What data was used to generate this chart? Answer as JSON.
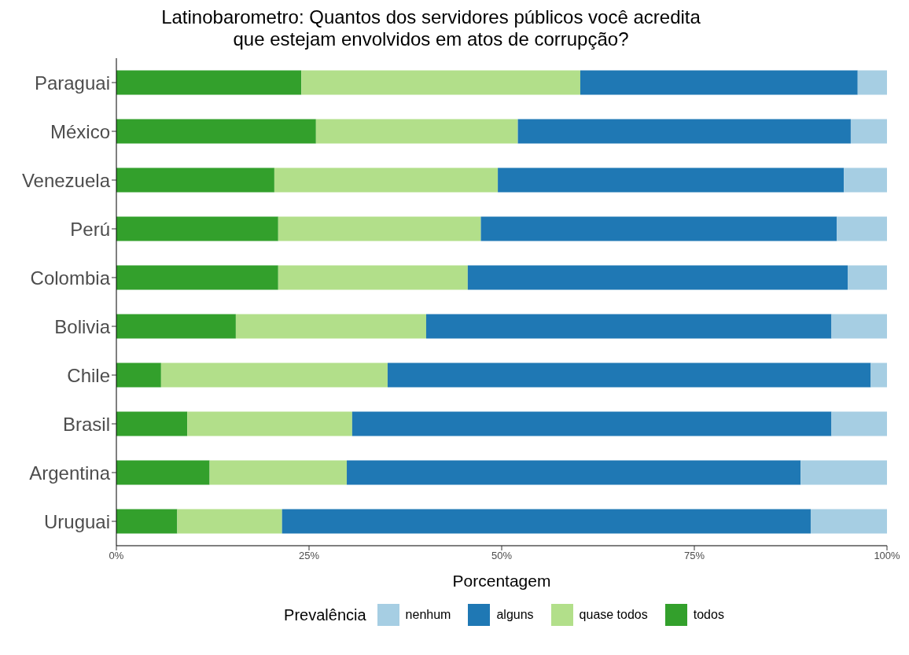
{
  "chart_data": {
    "type": "bar",
    "orientation": "horizontal",
    "stacked": true,
    "title": "Latinobarometro: Quantos dos servidores públicos você acredita\nque estejam envolvidos em atos de corrupção?",
    "xlabel": "Porcentagem",
    "legend_title": "Prevalência",
    "legend": "bottom",
    "grid": false,
    "categories": [
      "Paraguai",
      "México",
      "Venezuela",
      "Perú",
      "Colombia",
      "Bolivia",
      "Chile",
      "Brasil",
      "Argentina",
      "Uruguai"
    ],
    "series": [
      {
        "name": "todos",
        "color": "#33a02c",
        "values": [
          24.0,
          25.9,
          20.5,
          21.0,
          21.0,
          15.5,
          5.8,
          9.2,
          12.1,
          7.9
        ]
      },
      {
        "name": "quase todos",
        "color": "#b2df8a",
        "values": [
          36.2,
          26.2,
          29.0,
          26.3,
          24.6,
          24.7,
          29.4,
          21.4,
          17.8,
          13.6
        ]
      },
      {
        "name": "alguns",
        "color": "#1f78b4",
        "values": [
          36.0,
          43.2,
          44.9,
          46.2,
          49.3,
          52.6,
          62.7,
          62.2,
          58.9,
          68.6
        ]
      },
      {
        "name": "nenhum",
        "color": "#a6cee3",
        "values": [
          3.8,
          4.7,
          5.6,
          6.5,
          5.1,
          7.2,
          2.1,
          7.2,
          11.2,
          9.9
        ]
      }
    ],
    "xlim": [
      0,
      100
    ],
    "xticks": [
      {
        "value": 0,
        "label": "0%"
      },
      {
        "value": 25,
        "label": "25%"
      },
      {
        "value": 50,
        "label": "50%"
      },
      {
        "value": 75,
        "label": "75%"
      },
      {
        "value": 100,
        "label": "100%"
      }
    ]
  }
}
